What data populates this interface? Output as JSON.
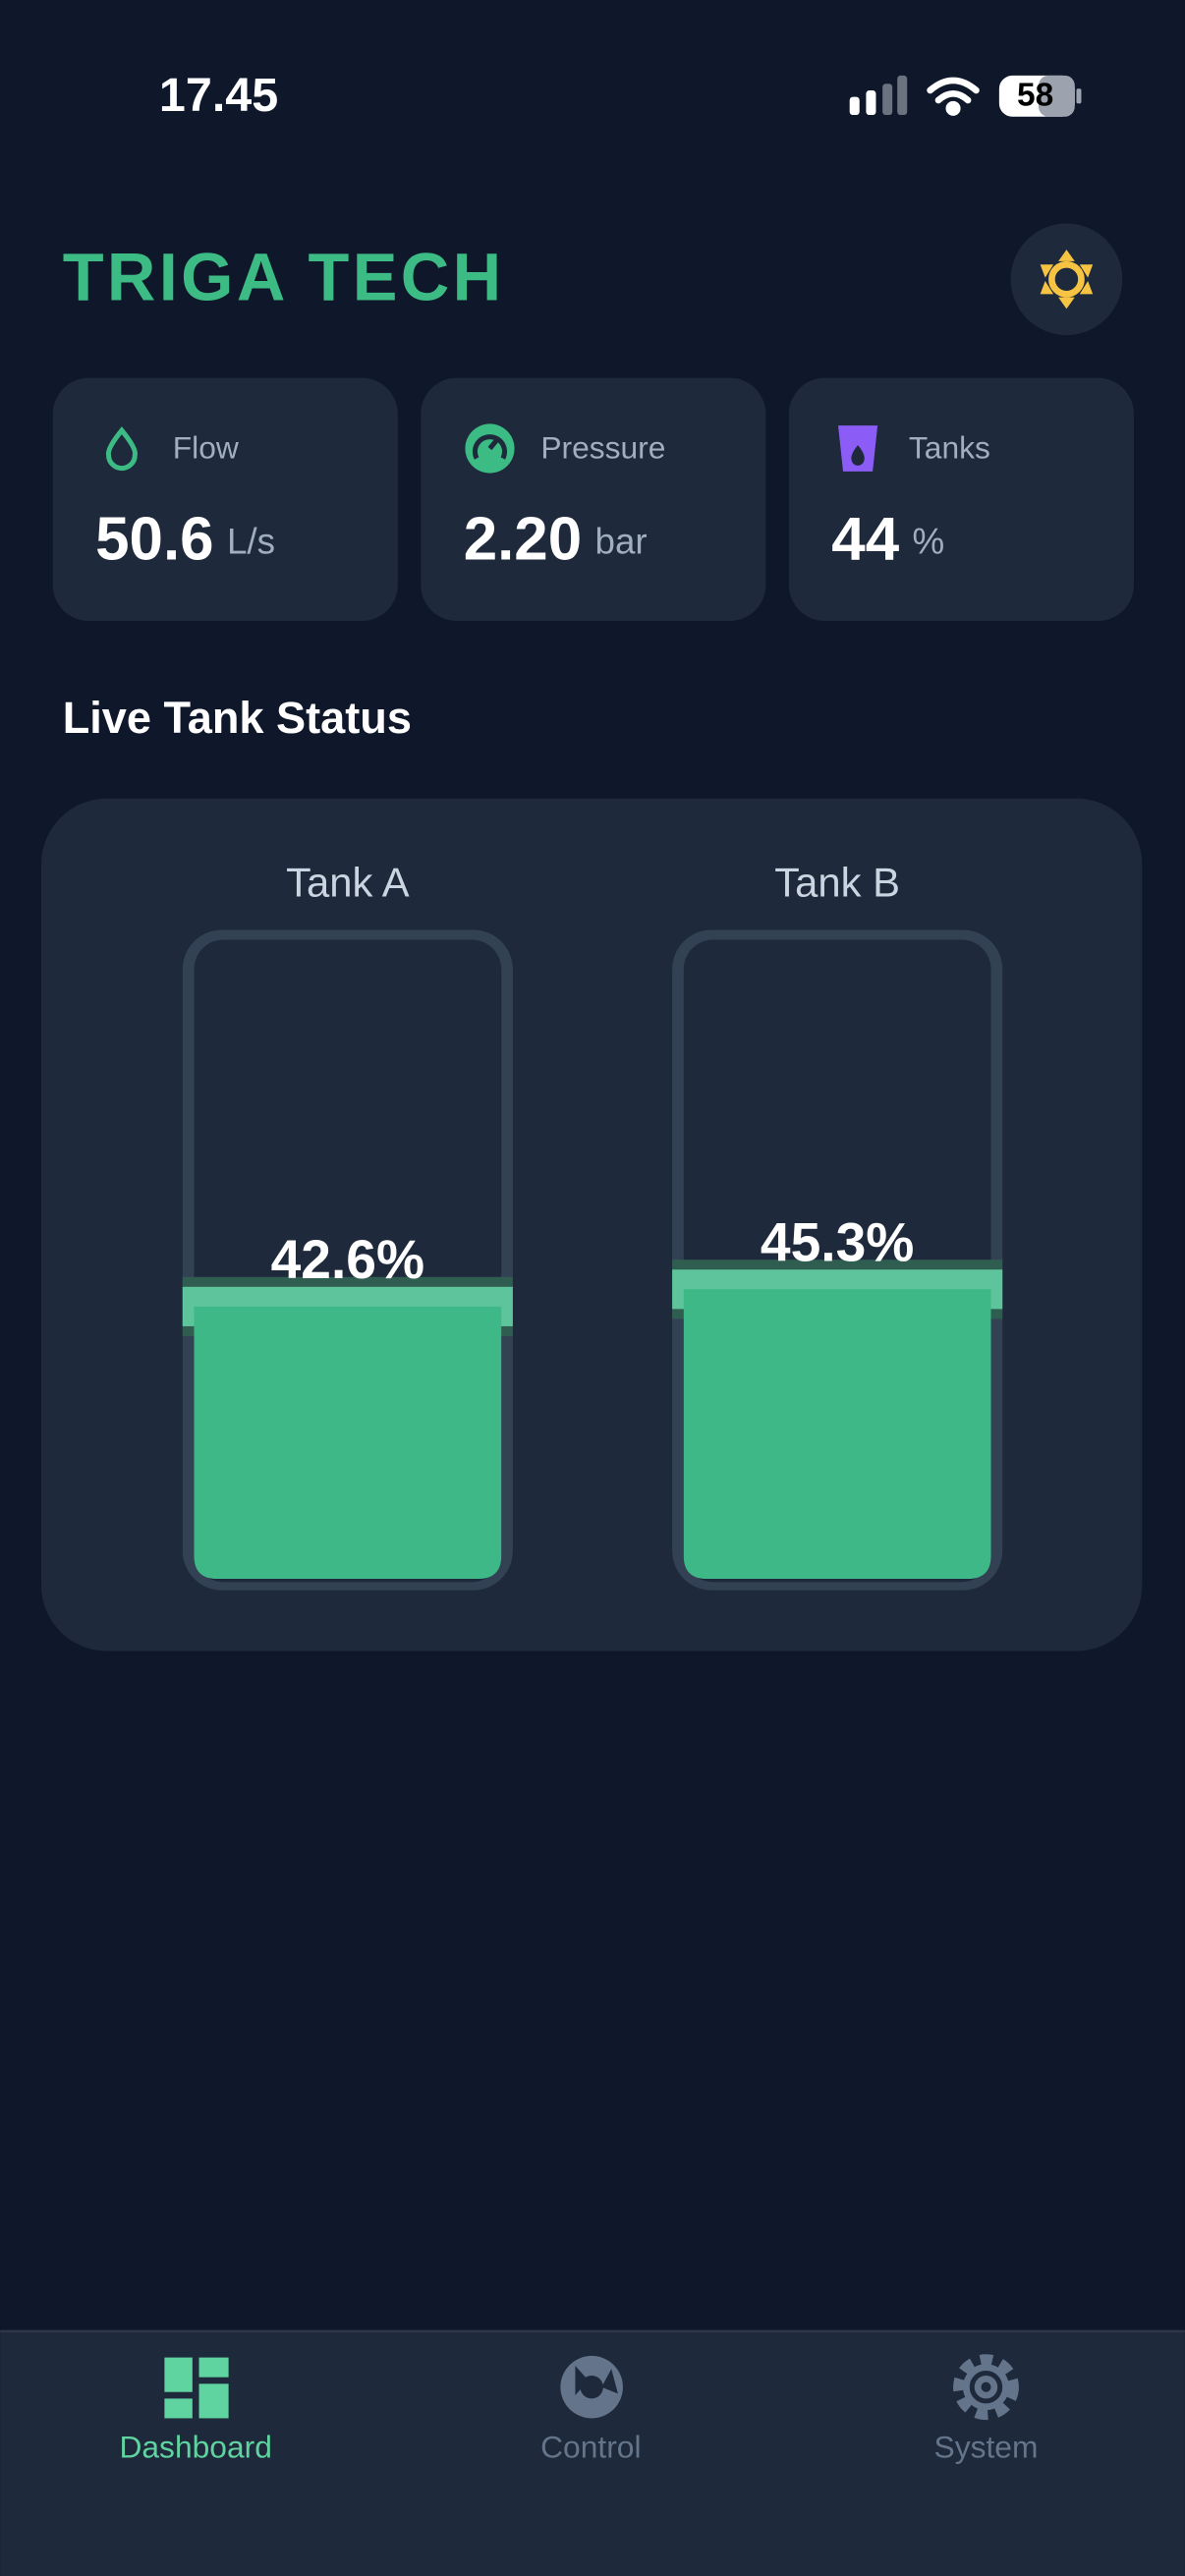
{
  "status_bar": {
    "time": "17.45",
    "battery": "58"
  },
  "header": {
    "logo": "TRIGA TECH"
  },
  "metrics": [
    {
      "label": "Flow",
      "value": "50.6",
      "unit": "L/s"
    },
    {
      "label": "Pressure",
      "value": "2.20",
      "unit": "bar"
    },
    {
      "label": "Tanks",
      "value": "44",
      "unit": "%"
    }
  ],
  "section_title": "Live Tank Status",
  "tanks": [
    {
      "name": "Tank A",
      "level": 42.6,
      "level_label": "42.6%"
    },
    {
      "name": "Tank B",
      "level": 45.3,
      "level_label": "45.3%"
    }
  ],
  "nav": [
    {
      "label": "Dashboard",
      "active": true
    },
    {
      "label": "Control",
      "active": false
    },
    {
      "label": "System",
      "active": false
    }
  ]
}
